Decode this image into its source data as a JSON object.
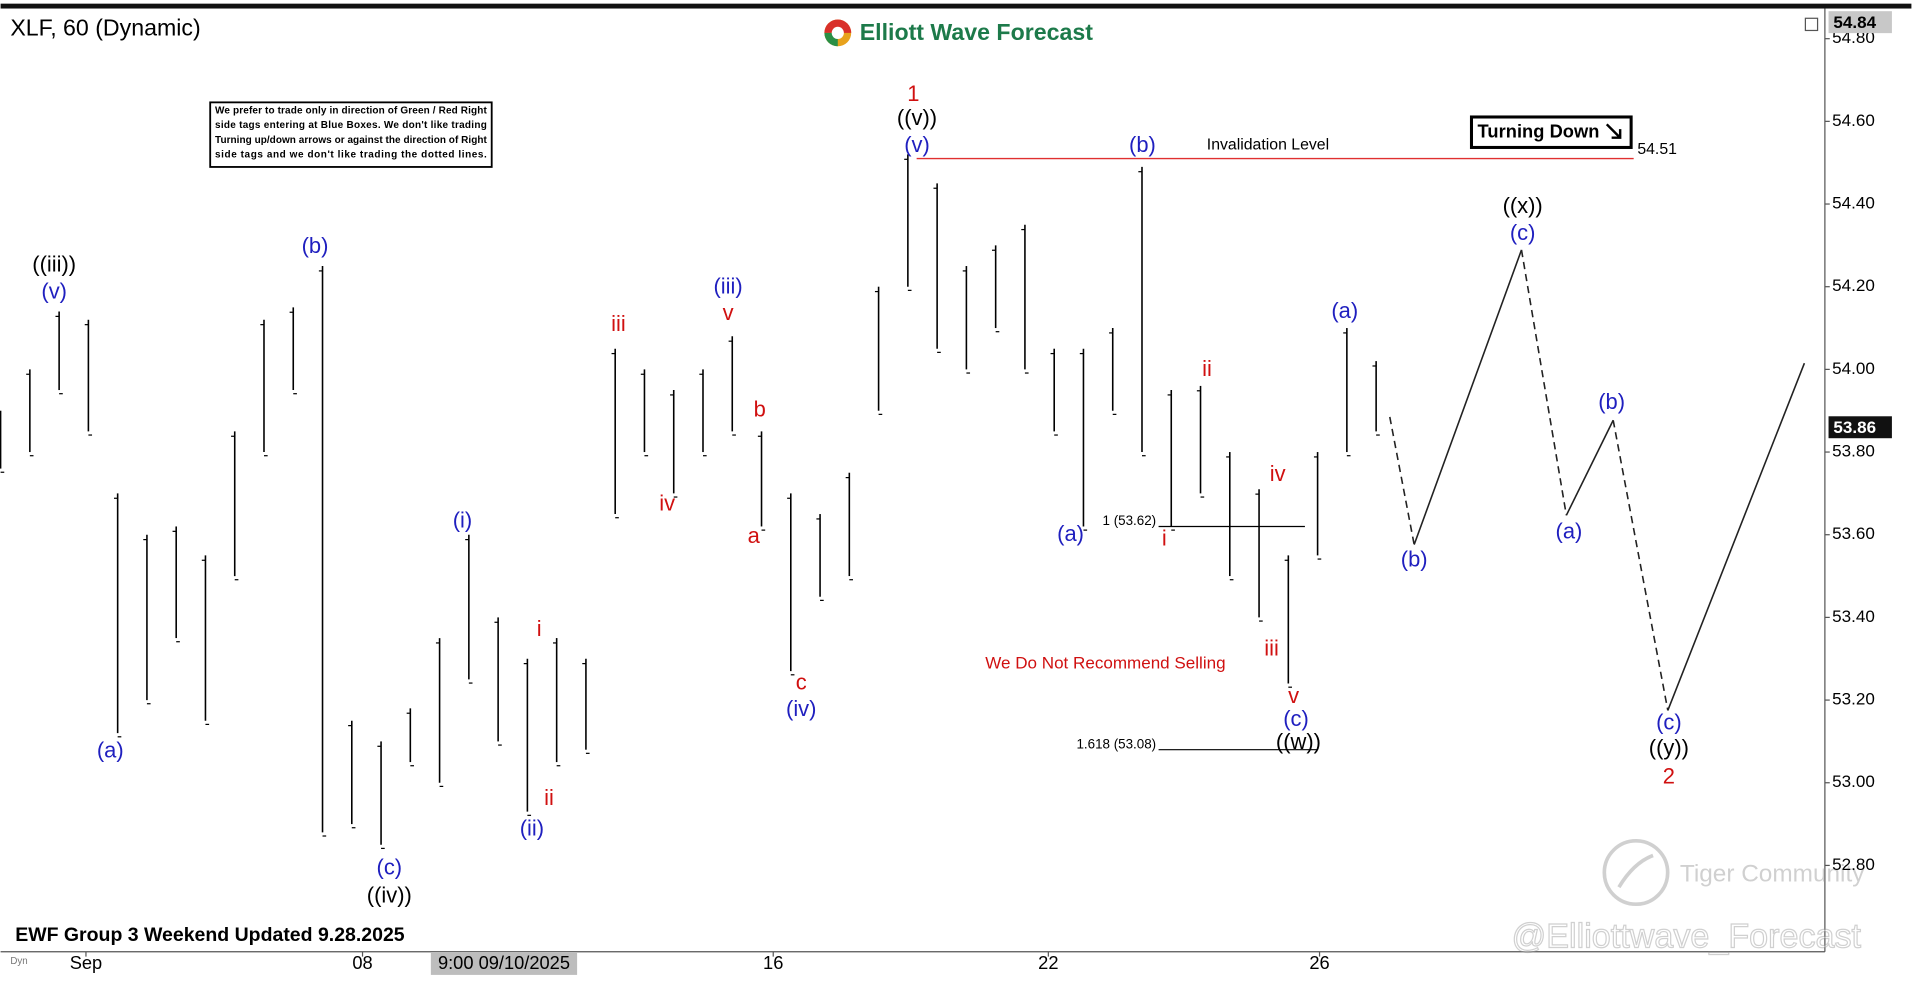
{
  "chart_data": {
    "type": "ohlc",
    "title": "XLF, 60 (Dynamic)",
    "brand": "Elliott Wave Forecast",
    "note_lines": [
      "We prefer to trade only in direction of Green / Red Right",
      "side tags entering at Blue Boxes. We don't like trading",
      "Turning up/down arrows or against the direction of Right",
      "side tags and we don't like trading the dotted lines."
    ],
    "tag": "Turning Down",
    "warning": "We Do Not Recommend Selling",
    "footer": "EWF Group 3 Weekend Updated 9.28.2025",
    "watermarks": [
      "Tiger Community",
      "@Elliottwave_Forecast"
    ],
    "mode_label": "Dyn",
    "xlim": [
      0,
      187
    ],
    "xticks": [
      {
        "value": 8.75,
        "label": "Sep"
      },
      {
        "value": 37.1,
        "label": "08"
      },
      {
        "value": 79.2,
        "label": "16"
      },
      {
        "value": 107.4,
        "label": "22"
      },
      {
        "value": 135.2,
        "label": "26"
      }
    ],
    "ylim": [
      52.6,
      54.87
    ],
    "yticks": [
      {
        "value": 52.8,
        "label": "52.80"
      },
      {
        "value": 53.0,
        "label": "53.00"
      },
      {
        "value": 53.2,
        "label": "53.20"
      },
      {
        "value": 53.4,
        "label": "53.40"
      },
      {
        "value": 53.6,
        "label": "53.60"
      },
      {
        "value": 53.8,
        "label": "53.80"
      },
      {
        "value": 54.0,
        "label": "54.00"
      },
      {
        "value": 54.2,
        "label": "54.20"
      },
      {
        "value": 54.4,
        "label": "54.40"
      },
      {
        "value": 54.6,
        "label": "54.60"
      },
      {
        "value": 54.8,
        "label": "54.80"
      }
    ],
    "crosshair": {
      "x": 51.6,
      "label": "9:00 09/10/2025"
    },
    "price_markers": [
      54.84,
      53.86
    ],
    "bars": {
      "color": "#000000",
      "x": [
        0,
        3,
        6,
        9,
        12,
        15,
        18,
        21,
        24,
        27,
        30,
        33,
        36,
        39,
        42,
        45,
        48,
        51,
        54,
        57,
        60,
        63,
        66,
        69,
        72,
        75,
        78,
        81,
        84,
        87,
        90,
        93,
        96,
        99,
        102,
        105,
        108,
        111,
        114,
        117,
        120,
        123,
        126,
        129,
        132,
        135,
        138,
        141
      ],
      "low": [
        53.76,
        53.8,
        53.95,
        53.85,
        53.12,
        53.2,
        53.35,
        53.15,
        53.5,
        53.8,
        53.95,
        52.88,
        52.9,
        52.85,
        53.05,
        53.0,
        53.25,
        53.1,
        52.93,
        53.05,
        53.08,
        53.65,
        53.8,
        53.7,
        53.8,
        53.85,
        53.62,
        53.27,
        53.45,
        53.5,
        53.9,
        54.2,
        54.05,
        54.0,
        54.1,
        54.0,
        53.85,
        53.62,
        53.9,
        53.8,
        53.62,
        53.7,
        53.5,
        53.4,
        53.24,
        53.55,
        53.8,
        53.85
      ],
      "high": [
        53.9,
        54.0,
        54.14,
        54.12,
        53.7,
        53.6,
        53.62,
        53.55,
        53.85,
        54.12,
        54.15,
        54.25,
        53.15,
        53.1,
        53.18,
        53.35,
        53.6,
        53.4,
        53.3,
        53.35,
        53.3,
        54.05,
        54.0,
        53.95,
        54.0,
        54.08,
        53.85,
        53.7,
        53.65,
        53.75,
        54.2,
        54.52,
        54.45,
        54.25,
        54.3,
        54.35,
        54.05,
        54.05,
        54.1,
        54.49,
        53.95,
        53.96,
        53.8,
        53.71,
        53.55,
        53.8,
        54.1,
        54.02
      ]
    },
    "invalidation": {
      "label": "Invalidation Level",
      "value": 54.51,
      "x": [
        93.9,
        167.4
      ],
      "color": "#e03030"
    },
    "fib_levels": [
      {
        "label": "1 (53.62)",
        "value": 53.62,
        "x": [
          118.7,
          133.7
        ]
      },
      {
        "label": "1.618 (53.08)",
        "value": 53.08,
        "x": [
          118.7,
          134.9
        ]
      }
    ],
    "projection": {
      "x": [
        142.4,
        144.9,
        155.9,
        160.5,
        165.3,
        170.9,
        184.9
      ],
      "values": [
        53.885,
        53.576,
        54.289,
        53.647,
        53.877,
        53.175,
        54.015
      ],
      "styles": [
        "dashed",
        "solid",
        "dashed",
        "solid",
        "dashed",
        "solid"
      ]
    },
    "wave_labels": [
      {
        "text": "((iii))",
        "color": "#000000"
      },
      {
        "text": "(v)",
        "color": "#1f1fbf"
      },
      {
        "text": "(a)",
        "color": "#1f1fbf"
      },
      {
        "text": "(b)",
        "color": "#1f1fbf"
      },
      {
        "text": "(c)",
        "color": "#1f1fbf"
      },
      {
        "text": "((iv))",
        "color": "#000000"
      },
      {
        "text": "(i)",
        "color": "#1f1fbf"
      },
      {
        "text": "(ii)",
        "color": "#1f1fbf"
      },
      {
        "text": "i",
        "color": "#d01010"
      },
      {
        "text": "ii",
        "color": "#d01010"
      },
      {
        "text": "iii",
        "color": "#d01010"
      },
      {
        "text": "iv",
        "color": "#d01010"
      },
      {
        "text": "(iii)",
        "color": "#1f1fbf"
      },
      {
        "text": "v",
        "color": "#d01010"
      },
      {
        "text": "b",
        "color": "#d01010"
      },
      {
        "text": "a",
        "color": "#d01010"
      },
      {
        "text": "c",
        "color": "#d01010"
      },
      {
        "text": "(iv)",
        "color": "#1f1fbf"
      },
      {
        "text": "1",
        "color": "#d01010"
      },
      {
        "text": "((v))",
        "color": "#000000"
      },
      {
        "text": "(v)",
        "color": "#1f1fbf"
      },
      {
        "text": "(b)",
        "color": "#1f1fbf"
      },
      {
        "text": "(a)",
        "color": "#1f1fbf"
      },
      {
        "text": "ii",
        "color": "#d01010"
      },
      {
        "text": "i",
        "color": "#d01010"
      },
      {
        "text": "iv",
        "color": "#d01010"
      },
      {
        "text": "iii",
        "color": "#d01010"
      },
      {
        "text": "v",
        "color": "#d01010"
      },
      {
        "text": "(c)",
        "color": "#1f1fbf"
      },
      {
        "text": "((w))",
        "color": "#000000"
      },
      {
        "text": "(a)",
        "color": "#1f1fbf"
      },
      {
        "text": "((x))",
        "color": "#000000"
      },
      {
        "text": "(c)",
        "color": "#1f1fbf"
      },
      {
        "text": "(b)",
        "color": "#1f1fbf"
      },
      {
        "text": "(b)",
        "color": "#1f1fbf"
      },
      {
        "text": "(a)",
        "color": "#1f1fbf"
      },
      {
        "text": "(c)",
        "color": "#1f1fbf"
      },
      {
        "text": "((y))",
        "color": "#000000"
      },
      {
        "text": "2",
        "color": "#d01010"
      }
    ]
  }
}
